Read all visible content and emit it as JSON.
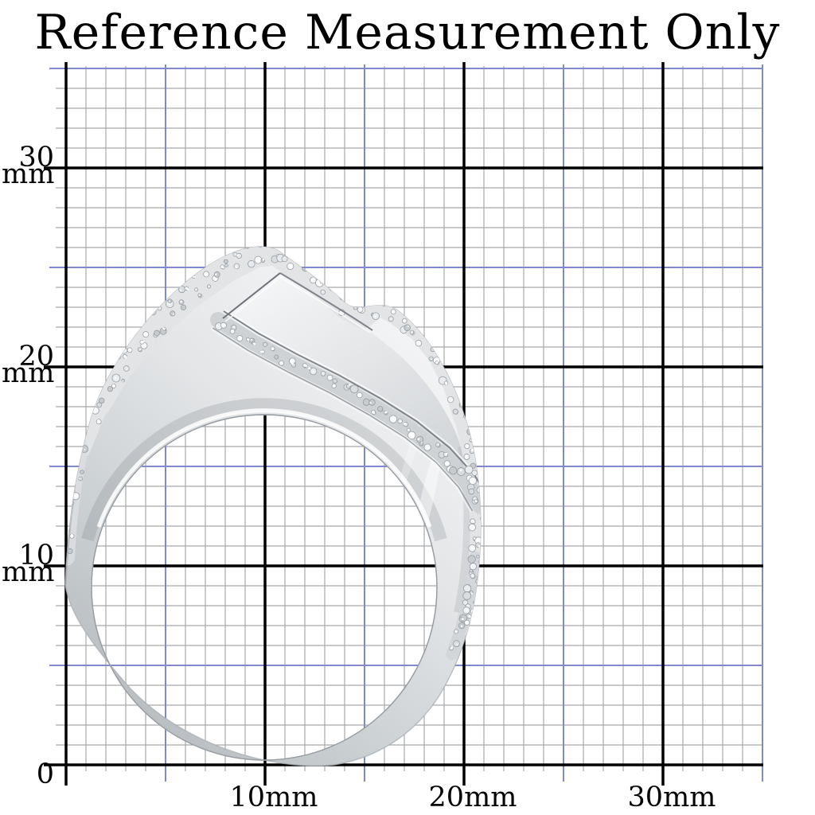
{
  "title": "Reference Measurement Only",
  "y_axis": {
    "labels": [
      {
        "number": "30",
        "unit": "mm"
      },
      {
        "number": "20",
        "unit": "mm"
      },
      {
        "number": "10",
        "unit": "mm"
      },
      {
        "number": "0",
        "unit": ""
      }
    ]
  },
  "x_axis": {
    "labels": [
      "10mm",
      "20mm",
      "30mm"
    ]
  },
  "grid": {
    "unit": "mm",
    "minor_step_mm": 1,
    "mid_step_mm": 5,
    "major_step_mm": 10,
    "extent_mm": 35
  },
  "ring": {
    "description": "Silver pave-set cocktail ring shown in side profile on millimeter grid"
  },
  "colors": {
    "background": "#ffffff",
    "grid_minor": "#a7a9ab",
    "grid_mid": "#8089cc",
    "grid_major": "#000000",
    "text": "#050505",
    "silver_dark": "#b4b8bc",
    "silver_mid": "#d4d7da",
    "silver_light": "#f1f2f3"
  }
}
